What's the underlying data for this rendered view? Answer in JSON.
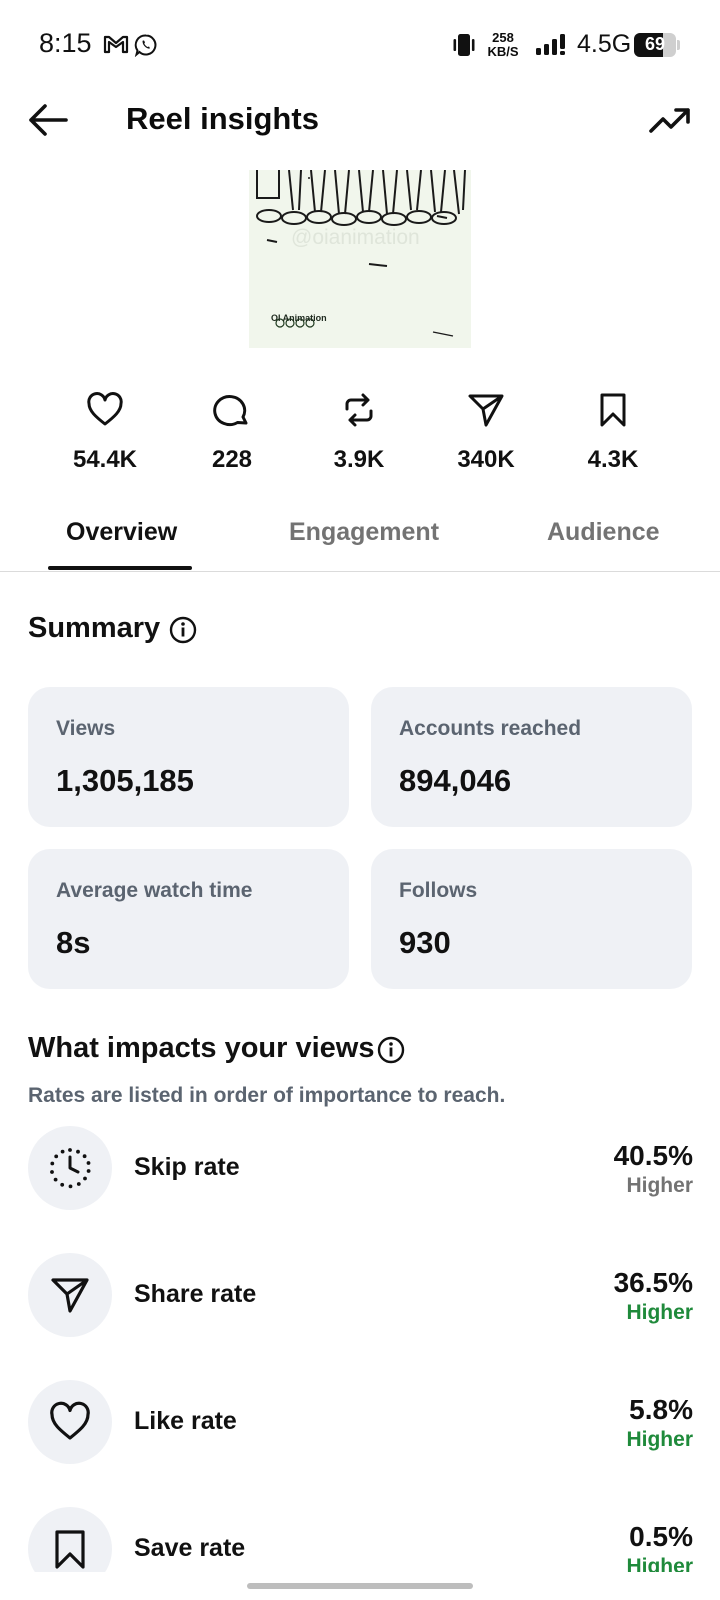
{
  "status_bar": {
    "time": "8:15",
    "speed_value": "258",
    "speed_unit": "KB/S",
    "network": "4.5G",
    "battery": "69",
    "icons": [
      "gmail-icon",
      "whatsapp-icon",
      "vibrate-icon",
      "signal-icon",
      "battery-icon"
    ]
  },
  "header": {
    "title": "Reel insights",
    "back_icon": "arrow-left-icon",
    "trend_icon": "trending-up-icon"
  },
  "thumbnail": {
    "watermark": "@oianimation",
    "brand": "OI Animation"
  },
  "stats": [
    {
      "icon": "heart-icon",
      "value": "54.4K"
    },
    {
      "icon": "comment-icon",
      "value": "228"
    },
    {
      "icon": "repost-icon",
      "value": "3.9K"
    },
    {
      "icon": "share-icon",
      "value": "340K"
    },
    {
      "icon": "bookmark-icon",
      "value": "4.3K"
    }
  ],
  "tabs": [
    {
      "label": "Overview",
      "active": true
    },
    {
      "label": "Engagement",
      "active": false
    },
    {
      "label": "Audience",
      "active": false
    }
  ],
  "summary": {
    "title": "Summary",
    "cards": [
      {
        "label": "Views",
        "value": "1,305,185"
      },
      {
        "label": "Accounts reached",
        "value": "894,046"
      },
      {
        "label": "Average watch time",
        "value": "8s"
      },
      {
        "label": "Follows",
        "value": "930"
      }
    ]
  },
  "impacts": {
    "title": "What impacts your views",
    "subtitle": "Rates are listed in order of importance to reach.",
    "rates": [
      {
        "icon": "clock-dotted-icon",
        "name": "Skip rate",
        "value": "40.5%",
        "comparison": "Higher",
        "comparison_color": "#737373"
      },
      {
        "icon": "share-icon",
        "name": "Share rate",
        "value": "36.5%",
        "comparison": "Higher",
        "comparison_color": "#1f8a3b"
      },
      {
        "icon": "heart-icon",
        "name": "Like rate",
        "value": "5.8%",
        "comparison": "Higher",
        "comparison_color": "#1f8a3b"
      },
      {
        "icon": "bookmark-icon",
        "name": "Save rate",
        "value": "0.5%",
        "comparison": "Higher",
        "comparison_color": "#1f8a3b"
      }
    ]
  },
  "colors": {
    "text": "#0c0c0c",
    "muted": "#737373",
    "card_bg": "#eff1f5",
    "positive": "#1f8a3b"
  }
}
